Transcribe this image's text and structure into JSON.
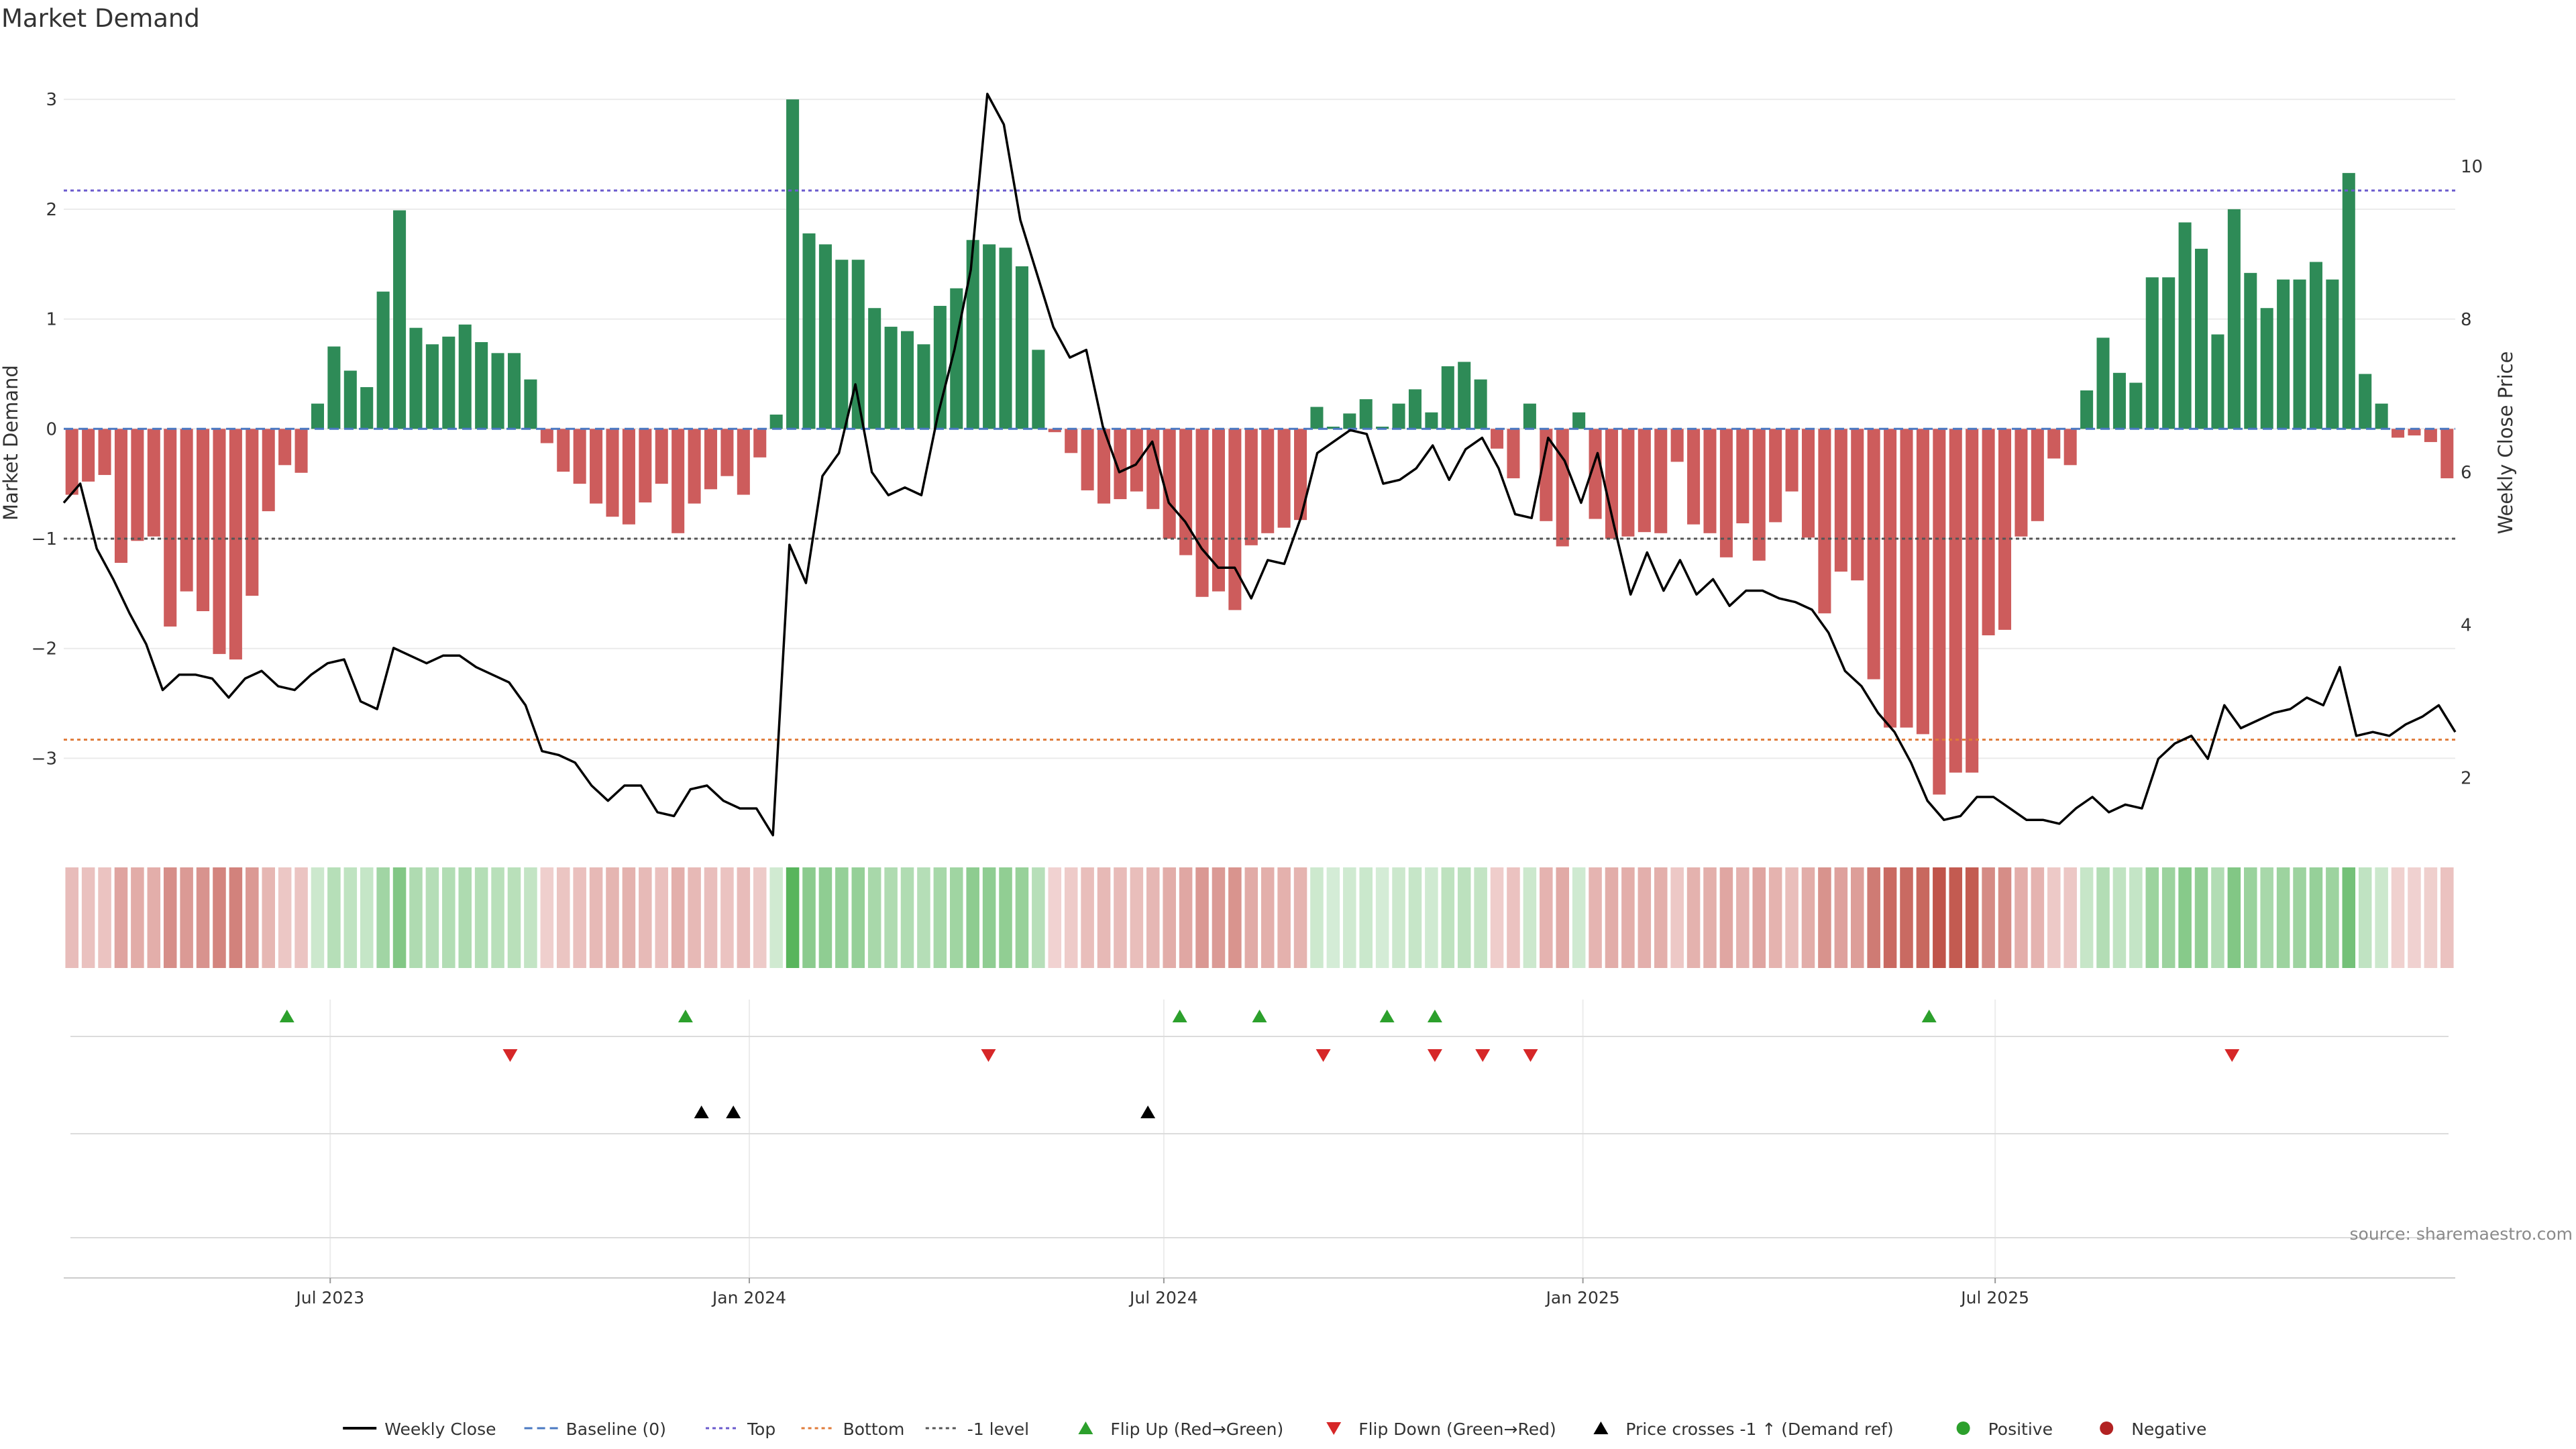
{
  "chart_data": {
    "type": "bar",
    "title": "Market Demand",
    "ylabel": "Market Demand",
    "y2label": "Weekly Close Price",
    "ylim": [
      -3.7,
      3.05
    ],
    "y2lim": [
      1.25,
      10.95
    ],
    "yticks": [
      3,
      2,
      1,
      0,
      -1,
      -2,
      -3
    ],
    "y2ticks": [
      10,
      8,
      6,
      4,
      2
    ],
    "x_start": "2023-03-06",
    "x_end": "2026-01-19",
    "x_ticks": [
      {
        "date": "2023-07-01",
        "label": "Jul 2023"
      },
      {
        "date": "2024-01-01",
        "label": "Jan 2024"
      },
      {
        "date": "2024-07-01",
        "label": "Jul 2024"
      },
      {
        "date": "2025-01-01",
        "label": "Jan 2025"
      },
      {
        "date": "2025-07-01",
        "label": "Jul 2025"
      }
    ],
    "reference_lines": {
      "top": 2.17,
      "bottom": -2.83,
      "minus_one": -1.0,
      "baseline": 0
    },
    "demand": [
      -0.6,
      -0.48,
      -0.42,
      -1.22,
      -1.02,
      -0.98,
      -1.8,
      -1.48,
      -1.66,
      -2.05,
      -2.1,
      -1.52,
      -0.75,
      -0.33,
      -0.4,
      0.23,
      0.75,
      0.53,
      0.38,
      1.25,
      1.99,
      0.92,
      0.77,
      0.84,
      0.95,
      0.79,
      0.69,
      0.69,
      0.45,
      -0.13,
      -0.39,
      -0.5,
      -0.68,
      -0.8,
      -0.87,
      -0.67,
      -0.5,
      -0.95,
      -0.68,
      -0.55,
      -0.43,
      -0.6,
      -0.26,
      0.13,
      3.0,
      1.78,
      1.68,
      1.54,
      1.54,
      1.1,
      0.93,
      0.89,
      0.77,
      1.12,
      1.28,
      1.72,
      1.68,
      1.65,
      1.48,
      0.72,
      -0.03,
      -0.22,
      -0.56,
      -0.68,
      -0.64,
      -0.57,
      -0.73,
      -1.0,
      -1.15,
      -1.53,
      -1.48,
      -1.65,
      -1.06,
      -0.95,
      -0.9,
      -0.83,
      0.2,
      0.02,
      0.14,
      0.27,
      0.02,
      0.23,
      0.36,
      0.15,
      0.57,
      0.61,
      0.45,
      -0.18,
      -0.45,
      0.23,
      -0.84,
      -1.07,
      0.15,
      -0.82,
      -1.0,
      -0.98,
      -0.94,
      -0.95,
      -0.3,
      -0.87,
      -0.95,
      -1.17,
      -0.86,
      -1.2,
      -0.85,
      -0.57,
      -0.99,
      -1.68,
      -1.3,
      -1.38,
      -2.28,
      -2.72,
      -2.72,
      -2.78,
      -3.33,
      -3.13,
      -3.13,
      -1.88,
      -1.83,
      -0.98,
      -0.84,
      -0.27,
      -0.33,
      0.35,
      0.83,
      0.51,
      0.42,
      1.38,
      1.38,
      1.88,
      1.64,
      0.86,
      2.0,
      1.42,
      1.1,
      1.36,
      1.36,
      1.52,
      1.36,
      2.33,
      0.5,
      0.23,
      -0.08,
      -0.06,
      -0.12,
      -0.45
    ],
    "weekly_close": [
      5.6,
      5.85,
      5.0,
      4.6,
      4.15,
      3.75,
      3.15,
      3.35,
      3.35,
      3.3,
      3.05,
      3.3,
      3.4,
      3.2,
      3.15,
      3.35,
      3.5,
      3.55,
      3.0,
      2.9,
      3.7,
      3.6,
      3.5,
      3.6,
      3.6,
      3.45,
      3.35,
      3.25,
      2.95,
      2.35,
      2.3,
      2.2,
      1.9,
      1.7,
      1.9,
      1.9,
      1.55,
      1.5,
      1.85,
      1.9,
      1.7,
      1.6,
      1.6,
      1.25,
      5.05,
      4.55,
      5.95,
      6.25,
      7.15,
      6.0,
      5.7,
      5.8,
      5.7,
      6.75,
      7.6,
      8.65,
      10.95,
      10.55,
      9.3,
      8.6,
      7.9,
      7.5,
      7.6,
      6.6,
      6.0,
      6.1,
      6.4,
      5.6,
      5.35,
      5.0,
      4.75,
      4.75,
      4.35,
      4.85,
      4.8,
      5.4,
      6.25,
      6.4,
      6.55,
      6.5,
      5.85,
      5.9,
      6.05,
      6.35,
      5.9,
      6.3,
      6.45,
      6.05,
      5.45,
      5.4,
      6.45,
      6.15,
      5.6,
      6.25,
      5.3,
      4.4,
      4.95,
      4.45,
      4.85,
      4.4,
      4.6,
      4.25,
      4.45,
      4.45,
      4.35,
      4.3,
      4.2,
      3.9,
      3.4,
      3.2,
      2.85,
      2.6,
      2.2,
      1.7,
      1.45,
      1.5,
      1.75,
      1.75,
      1.6,
      1.45,
      1.45,
      1.4,
      1.6,
      1.75,
      1.55,
      1.65,
      1.6,
      2.25,
      2.45,
      2.55,
      2.25,
      2.95,
      2.65,
      2.75,
      2.85,
      2.9,
      3.05,
      2.95,
      3.45,
      2.55,
      2.6,
      2.55,
      2.7,
      2.8,
      2.95,
      2.6
    ],
    "shade_levels": [
      -0.6,
      -0.48,
      -0.42,
      -1.22,
      -1.02,
      -0.98,
      -1.8,
      -1.48,
      -1.66,
      -2.05,
      -2.1,
      -1.52,
      -0.75,
      -0.33,
      -0.4,
      0.23,
      0.75,
      0.53,
      0.38,
      1.25,
      1.99,
      0.92,
      0.77,
      0.84,
      0.95,
      0.79,
      0.69,
      0.69,
      0.45,
      -0.13,
      -0.39,
      -0.5,
      -0.68,
      -0.8,
      -0.87,
      -0.67,
      -0.5,
      -0.95,
      -0.68,
      -0.55,
      -0.43,
      -0.6,
      -0.26,
      0.13,
      3.0,
      1.78,
      1.68,
      1.54,
      1.54,
      1.1,
      0.93,
      0.89,
      0.77,
      1.12,
      1.28,
      1.72,
      1.68,
      1.65,
      1.48,
      0.72,
      -0.03,
      -0.22,
      -0.56,
      -0.68,
      -0.64,
      -0.57,
      -0.73,
      -1.0,
      -1.15,
      -1.53,
      -1.48,
      -1.65,
      -1.06,
      -0.95,
      -0.9,
      -0.83,
      0.2,
      0.02,
      0.14,
      0.27,
      0.02,
      0.23,
      0.36,
      0.15,
      0.57,
      0.61,
      0.45,
      -0.18,
      -0.45,
      0.23,
      -0.84,
      -1.07,
      0.15,
      -0.82,
      -1.0,
      -0.98,
      -0.94,
      -0.95,
      -0.3,
      -0.87,
      -0.95,
      -1.17,
      -0.86,
      -1.2,
      -0.85,
      -0.57,
      -0.99,
      -1.68,
      -1.3,
      -1.38,
      -2.28,
      -2.72,
      -2.72,
      -2.78,
      -3.33,
      -3.13,
      -3.13,
      -1.88,
      -1.83,
      -0.98,
      -0.84,
      -0.27,
      -0.33,
      0.35,
      0.83,
      0.51,
      0.42,
      1.38,
      1.38,
      1.88,
      1.64,
      0.86,
      2.0,
      1.42,
      1.1,
      1.36,
      1.36,
      1.52,
      1.36,
      2.33,
      0.5,
      0.23,
      -0.08,
      -0.06,
      -0.12,
      -0.45
    ],
    "flip_up_dates": [
      "2023-06-12",
      "2023-12-04",
      "2024-07-08",
      "2024-08-12",
      "2024-10-07",
      "2024-10-28",
      "2025-06-02"
    ],
    "flip_down_dates": [
      "2023-09-18",
      "2024-04-15",
      "2024-09-09",
      "2024-10-28",
      "2024-11-18",
      "2024-12-09",
      "2025-10-13"
    ],
    "price_cross_dates": [
      "2023-12-11",
      "2023-12-25",
      "2024-06-24"
    ],
    "colors": {
      "positive": "#2e8b57",
      "negative": "#cd5c5c",
      "line": "#000000",
      "top": "#6a5acd",
      "bottom": "#e07b39",
      "minus_one": "#555555",
      "baseline": "#4a78c2",
      "flip_up": "#2ca02c",
      "flip_down": "#d62728",
      "cross": "#000000",
      "pos_dot": "#2ca02c",
      "neg_dot": "#b22222"
    },
    "legend": [
      {
        "key": "line",
        "label": "Weekly Close"
      },
      {
        "key": "baseline",
        "label": "Baseline (0)"
      },
      {
        "key": "top",
        "label": "Top"
      },
      {
        "key": "bottom",
        "label": "Bottom"
      },
      {
        "key": "minus_one",
        "label": "-1 level"
      },
      {
        "key": "flip_up",
        "label": "Flip Up (Red→Green)"
      },
      {
        "key": "flip_down",
        "label": "Flip Down (Green→Red)"
      },
      {
        "key": "cross",
        "label": "Price crosses -1 ↑ (Demand ref)"
      },
      {
        "key": "pos_dot",
        "label": "Positive"
      },
      {
        "key": "neg_dot",
        "label": "Negative"
      }
    ],
    "legend_placement": "bottom",
    "source": "source: sharemaestro.com"
  }
}
